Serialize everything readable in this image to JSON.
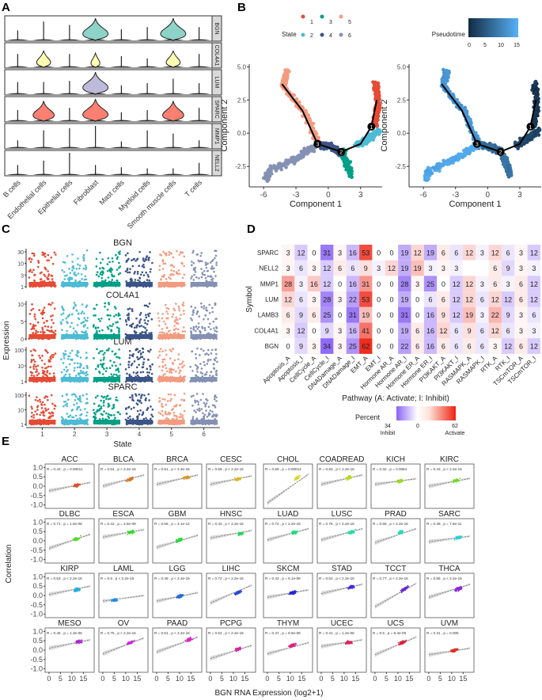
{
  "panels": {
    "a": "A",
    "b": "B",
    "c": "C",
    "d": "D",
    "e": "E"
  },
  "chart_data": [
    {
      "id": "A",
      "type": "violin",
      "genes": [
        "BGN",
        "COL4A1",
        "LUM",
        "SPARC",
        "MMP1",
        "NELL2"
      ],
      "gene_colors": [
        "#8DD3C7",
        "#FFFFB3",
        "#BEBADA",
        "#FB8072",
        "#444444",
        "#444444"
      ],
      "cell_types": [
        "B cells",
        "Endothelial cells",
        "Epithelial cells",
        "Fibroblast",
        "Mast cells",
        "Myeloid cells",
        "Smooth muscle cells",
        "T cells"
      ],
      "violin_levels": [
        [
          0,
          0,
          0,
          1,
          0,
          0,
          1,
          0
        ],
        [
          0,
          0.45,
          0,
          0.2,
          0,
          0,
          0.45,
          0
        ],
        [
          0,
          0,
          0,
          1,
          0,
          0,
          0,
          0
        ],
        [
          0,
          0.8,
          0,
          1,
          0,
          0,
          0.8,
          0
        ],
        [
          0,
          0,
          0,
          0,
          0,
          0,
          0,
          0
        ],
        [
          0,
          0,
          0,
          0,
          0,
          0,
          0,
          0
        ]
      ],
      "spike_heights": [
        [
          0.45,
          0.85,
          0.7,
          0,
          0.5,
          0.6,
          0,
          0.6
        ],
        [
          0.6,
          0,
          0.6,
          0,
          0.5,
          0.4,
          0,
          0.6
        ],
        [
          0.55,
          0.55,
          0.6,
          0,
          0.4,
          0.5,
          0.7,
          0.5
        ],
        [
          0.5,
          0,
          0.6,
          0,
          0.4,
          0.5,
          0,
          0.6
        ],
        [
          0.35,
          0.8,
          0.9,
          1.0,
          0.3,
          0.8,
          0.65,
          0.35
        ],
        [
          0.45,
          0.65,
          1.0,
          0.45,
          0.35,
          0.3,
          0.3,
          0.55
        ]
      ]
    },
    {
      "id": "B",
      "type": "scatter",
      "legend_title": "State",
      "states": [
        "1",
        "2",
        "3",
        "4",
        "5",
        "6"
      ],
      "state_colors": [
        "#E64B35",
        "#4DBBD5",
        "#00A087",
        "#3C5488",
        "#F39B7F",
        "#8491B4"
      ],
      "pseudotime_title": "Pseudotime",
      "pseudotime_ticks": [
        "0",
        "5",
        "10",
        "15"
      ],
      "pseudotime_range": [
        0,
        15
      ],
      "pseudotime_colors": [
        "#132B43",
        "#56B1F7"
      ],
      "xlabel": "Component 1",
      "ylabel": "Component 2",
      "xticks": [
        -6,
        -3,
        0,
        3
      ],
      "yticks": [
        -2.5,
        0.0,
        2.5,
        5.0
      ],
      "xtick_labels": [
        "-6",
        "-3",
        "0",
        "3"
      ],
      "ytick_labels": [
        "-2.5",
        "0.0",
        "2.5",
        "5.0"
      ],
      "xlim": [
        -6.6,
        5.0
      ],
      "ylim": [
        -3.8,
        5.2
      ],
      "branches": [
        {
          "state": 0,
          "path": [
            [
              4.3,
              0.6
            ],
            [
              4.6,
              2.0
            ],
            [
              4.4,
              3.8
            ]
          ],
          "pseudotime": 1
        },
        {
          "state": 1,
          "path": [
            [
              2.6,
              -0.9
            ],
            [
              3.8,
              -0.4
            ],
            [
              4.7,
              0.2
            ]
          ],
          "pseudotime": 3
        },
        {
          "state": 2,
          "path": [
            [
              1.3,
              -1.4
            ],
            [
              1.8,
              -2.4
            ],
            [
              2.1,
              -3.1
            ]
          ],
          "pseudotime": 8
        },
        {
          "state": 3,
          "path": [
            [
              -1.0,
              -0.8
            ],
            [
              0.2,
              -1.0
            ],
            [
              1.3,
              -1.5
            ]
          ],
          "pseudotime": 7
        },
        {
          "state": 4,
          "path": [
            [
              -1.0,
              -0.6
            ],
            [
              -2.2,
              1.6
            ],
            [
              -4.2,
              3.6
            ],
            [
              -3.8,
              4.7
            ]
          ],
          "pseudotime": 12
        },
        {
          "state": 5,
          "path": [
            [
              -1.0,
              -0.9
            ],
            [
              -3.0,
              -1.9
            ],
            [
              -5.6,
              -2.9
            ],
            [
              -5.7,
              -3.4
            ]
          ],
          "pseudotime": 14
        }
      ],
      "trajectory": [
        [
          -4.3,
          3.7
        ],
        [
          -2.4,
          1.7
        ],
        [
          -1.0,
          -0.8
        ],
        [
          1.2,
          -1.4
        ],
        [
          3.0,
          -0.8
        ],
        [
          4.0,
          0.5
        ],
        [
          4.5,
          2.5
        ]
      ],
      "nodes": [
        {
          "label": "1",
          "x": 4.0,
          "y": 0.5
        },
        {
          "label": "2",
          "x": 1.2,
          "y": -1.4
        },
        {
          "label": "3",
          "x": -1.0,
          "y": -0.8
        }
      ]
    },
    {
      "id": "C",
      "type": "strip",
      "genes": [
        "BGN",
        "COL4A1",
        "LUM",
        "SPARC"
      ],
      "ytick_labels": [
        [
          "30",
          "10",
          "3",
          "1"
        ],
        [
          "10",
          "5",
          "0"
        ],
        [
          "100",
          "10",
          "1"
        ],
        [
          "100",
          "10",
          "1"
        ]
      ],
      "states": [
        "1",
        "2",
        "3",
        "4",
        "5",
        "6"
      ],
      "xlabel": "State",
      "ylabel": "Expression"
    },
    {
      "id": "D",
      "type": "heatmap",
      "rows": [
        "SPARC",
        "NELL2",
        "MMP1",
        "LUM",
        "LAMB3",
        "COL4A1",
        "BGN"
      ],
      "columns": [
        "Apoptosis_A",
        "Apoptosis_I",
        "CellCycle_A",
        "CellCycle_I",
        "DNADamage_A",
        "DNADamage_I",
        "EMT_A",
        "EMT_I",
        "Hormone AR_A",
        "Hormone AR_I",
        "Hormone ER_A",
        "Hormone ER_I",
        "PI3KAKT_A",
        "PI3KAKT_I",
        "RASMAPK_A",
        "RASMAPK_I",
        "RTK_A",
        "RTK_I",
        "TSCmTOR_A",
        "TSCmTOR_I"
      ],
      "values": [
        [
          3,
          12,
          0,
          31,
          3,
          16,
          53,
          0,
          0,
          19,
          12,
          19,
          6,
          6,
          12,
          3,
          12,
          6,
          3,
          12
        ],
        [
          3,
          6,
          3,
          12,
          6,
          6,
          9,
          3,
          12,
          19,
          19,
          3,
          3,
          3,
          null,
          null,
          6,
          9,
          3,
          3
        ],
        [
          28,
          3,
          16,
          12,
          0,
          16,
          31,
          0,
          0,
          28,
          3,
          25,
          0,
          12,
          12,
          3,
          6,
          3,
          6,
          12
        ],
        [
          12,
          6,
          3,
          28,
          3,
          22,
          53,
          0,
          0,
          19,
          0,
          6,
          6,
          12,
          12,
          6,
          12,
          12,
          6,
          12
        ],
        [
          6,
          9,
          6,
          25,
          0,
          31,
          19,
          0,
          0,
          31,
          0,
          16,
          9,
          12,
          19,
          3,
          22,
          9,
          3,
          6
        ],
        [
          3,
          12,
          0,
          9,
          3,
          16,
          41,
          0,
          0,
          19,
          6,
          16,
          12,
          6,
          9,
          6,
          12,
          6,
          3,
          3
        ],
        [
          0,
          9,
          3,
          34,
          3,
          25,
          62,
          0,
          0,
          22,
          6,
          16,
          6,
          6,
          6,
          6,
          3,
          12,
          6,
          12
        ]
      ],
      "xlabel": "Pathway (A: Activate; I: Inhibit)",
      "ylabel": "Symbol",
      "legend_title": "Percent",
      "legend_ticks": [
        "34",
        "0",
        "62"
      ],
      "legend_sides": [
        "Inhibit",
        "Activate"
      ],
      "colors": {
        "inhibit": "#8A63F5",
        "activate": "#EE2211",
        "mid": "#FFFFFF"
      },
      "inhibit_max": 34,
      "activate_max": 62
    },
    {
      "id": "E",
      "type": "scatter",
      "xlabel": "BGN RNA Expression (log2+1)",
      "ylabel": "Correlation",
      "xticks": [
        "0",
        "5",
        "10",
        "15"
      ],
      "yticks": [
        "1.0",
        "0.5",
        "0.0",
        "-0.5",
        "-1.0"
      ],
      "xlim": [
        -1,
        19
      ],
      "ylim": [
        -1.1,
        1.1
      ],
      "cancers": [
        {
          "name": "ACC",
          "stat": "R = 0.42 , p = 0.00011",
          "center": [
            12,
            0.05
          ],
          "fit": [
            -0.25,
            0.2
          ]
        },
        {
          "name": "BLCA",
          "stat": "R = 0.64 , p < 2.2e-16",
          "center": [
            12,
            0.38
          ],
          "fit": [
            0.0,
            0.6
          ]
        },
        {
          "name": "BRCA",
          "stat": "R = 0.61 , p < 2.2e-16",
          "center": [
            13,
            0.45
          ],
          "fit": [
            0.1,
            0.6
          ]
        },
        {
          "name": "CESC",
          "stat": "R = 0.59 , p < 2.2e-16",
          "center": [
            12,
            0.38
          ],
          "fit": [
            0.1,
            0.55
          ]
        },
        {
          "name": "CHOL",
          "stat": "R = 0.59 , p = 0.00014",
          "center": [
            13,
            0.45
          ],
          "fit": [
            -0.9,
            0.65
          ]
        },
        {
          "name": "COADREAD",
          "stat": "R = 0.83 , p < 2.2e-16",
          "center": [
            12,
            0.45
          ],
          "fit": [
            0.1,
            0.6
          ]
        },
        {
          "name": "KICH",
          "stat": "R = 0.32 , p = 0.0084",
          "center": [
            11,
            0.28
          ],
          "fit": [
            0.1,
            0.4
          ]
        },
        {
          "name": "KIRC",
          "stat": "R = 0.43 , p < 2.2e-16",
          "center": [
            12,
            0.3
          ],
          "fit": [
            0.0,
            0.42
          ]
        },
        {
          "name": "DLBC",
          "stat": "R = 0.71 , p = 1.6e-08",
          "center": [
            12,
            0.1
          ],
          "fit": [
            -0.4,
            0.35
          ]
        },
        {
          "name": "ESCA",
          "stat": "R = 0.42 , p = 4.6e-09",
          "center": [
            12,
            0.45
          ],
          "fit": [
            0.2,
            0.6
          ]
        },
        {
          "name": "GBM",
          "stat": "R = 0.56 , p = 4.1e-14",
          "center": [
            10,
            0.05
          ],
          "fit": [
            -0.35,
            0.3
          ]
        },
        {
          "name": "HNSC",
          "stat": "R = 0.43 , p < 2.2e-16",
          "center": [
            13,
            0.38
          ],
          "fit": [
            0.15,
            0.55
          ]
        },
        {
          "name": "LUAD",
          "stat": "R = 0.74 , p < 2.2e-16",
          "center": [
            12,
            0.45
          ],
          "fit": [
            0.05,
            0.65
          ]
        },
        {
          "name": "LUSC",
          "stat": "R = 0.76 , p < 2.2e-16",
          "center": [
            13,
            0.45
          ],
          "fit": [
            0.05,
            0.65
          ]
        },
        {
          "name": "PRAD",
          "stat": "R = 0.68 , p < 2.2e-16",
          "center": [
            11,
            0.45
          ],
          "fit": [
            -0.1,
            0.65
          ]
        },
        {
          "name": "SARC",
          "stat": "R = 0.39 , p = 7.6e-11",
          "center": [
            13,
            0.18
          ],
          "fit": [
            -0.05,
            0.25
          ]
        },
        {
          "name": "KIRP",
          "stat": "R = 0.53 , p < 2.2e-16",
          "center": [
            12,
            0.3
          ],
          "fit": [
            0.05,
            0.5
          ]
        },
        {
          "name": "LAML",
          "stat": "R = 0.6 , p < 2.2e-16",
          "center": [
            5,
            -0.25
          ],
          "fit": [
            -0.3,
            0.0
          ]
        },
        {
          "name": "LGG",
          "stat": "R = 0.49 , p < 2.2e-16",
          "center": [
            10,
            -0.05
          ],
          "fit": [
            -0.3,
            0.15
          ]
        },
        {
          "name": "LIHC",
          "stat": "R = 0.72 , p < 2.2e-16",
          "center": [
            12,
            0.15
          ],
          "fit": [
            -0.4,
            0.55
          ]
        },
        {
          "name": "SKCM",
          "stat": "R = 0.43 , p = 5.1e-06",
          "center": [
            11,
            0.15
          ],
          "fit": [
            -0.1,
            0.3
          ]
        },
        {
          "name": "STAD",
          "stat": "R = 0.63 , p < 2.2e-16",
          "center": [
            13,
            0.45
          ],
          "fit": [
            0.1,
            0.6
          ]
        },
        {
          "name": "TCCT",
          "stat": "R = 0.77 , p < 2.2e-16",
          "center": [
            13,
            0.35
          ],
          "fit": [
            -0.6,
            0.65
          ]
        },
        {
          "name": "THCA",
          "stat": "R = 0.56 , p < 2.2e-16",
          "center": [
            13,
            0.35
          ],
          "fit": [
            -0.1,
            0.6
          ]
        },
        {
          "name": "MESO",
          "stat": "R = 0.45 , p = 1.3e-05",
          "center": [
            13,
            0.45
          ],
          "fit": [
            0.1,
            0.55
          ]
        },
        {
          "name": "OV",
          "stat": "R = 0.75 , p < 2.2e-16",
          "center": [
            12,
            0.4
          ],
          "fit": [
            -0.2,
            0.65
          ]
        },
        {
          "name": "PAAD",
          "stat": "R = 0.61 , p < 2.2e-16",
          "center": [
            14,
            0.55
          ],
          "fit": [
            -0.1,
            0.7
          ]
        },
        {
          "name": "PCPG",
          "stat": "R = 0.62 , p < 2.2e-16",
          "center": [
            12,
            0.05
          ],
          "fit": [
            -0.45,
            0.25
          ]
        },
        {
          "name": "THYM",
          "stat": "R = 0.47 , p = 8.5e-08",
          "center": [
            11,
            0.25
          ],
          "fit": [
            -0.2,
            0.4
          ]
        },
        {
          "name": "UCEC",
          "stat": "R = 0.41 , p = 1.2e-08",
          "center": [
            12,
            0.4
          ],
          "fit": [
            0.2,
            0.55
          ]
        },
        {
          "name": "UCS",
          "stat": "R = 0.5 , p = 8.4e-05",
          "center": [
            12,
            0.4
          ],
          "fit": [
            -0.25,
            0.7
          ]
        },
        {
          "name": "UVM",
          "stat": "R = 0.31 , p = 0.005",
          "center": [
            11,
            -0.02
          ],
          "fit": [
            -0.25,
            0.1
          ]
        }
      ]
    }
  ]
}
